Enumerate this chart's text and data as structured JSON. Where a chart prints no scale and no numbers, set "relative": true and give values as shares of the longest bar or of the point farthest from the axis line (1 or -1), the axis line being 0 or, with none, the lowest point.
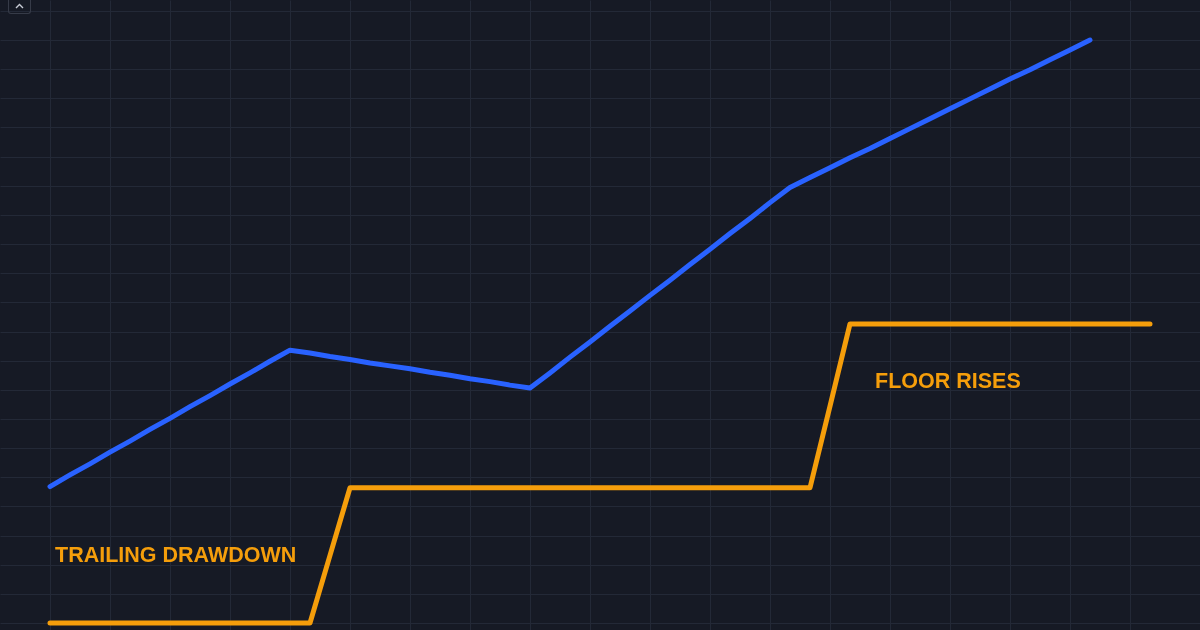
{
  "chart_data": {
    "type": "line",
    "relative": true,
    "categories": [
      null,
      null,
      null,
      null,
      null,
      null,
      null,
      null,
      null,
      null,
      null,
      null,
      null,
      null,
      null,
      null,
      null,
      null,
      null,
      null,
      null,
      null,
      null,
      null,
      null,
      null,
      null,
      null,
      null,
      null,
      null,
      null,
      null,
      null,
      null,
      null,
      null,
      null,
      null,
      null,
      null,
      null,
      null,
      null,
      null,
      null,
      null,
      null,
      null,
      null,
      null,
      null,
      null,
      null,
      null,
      null
    ],
    "series": [
      {
        "color": "#2962ff",
        "values": [
          0.234,
          0.254,
          0.273,
          0.293,
          0.312,
          0.332,
          0.351,
          0.371,
          0.39,
          0.41,
          0.429,
          0.449,
          0.468,
          0.463,
          0.457,
          0.452,
          0.446,
          0.441,
          0.436,
          0.43,
          0.425,
          0.419,
          0.414,
          0.408,
          0.403,
          0.429,
          0.456,
          0.482,
          0.509,
          0.535,
          0.562,
          0.588,
          0.615,
          0.641,
          0.668,
          0.694,
          0.721,
          0.747,
          0.764,
          0.781,
          0.798,
          0.814,
          0.831,
          0.848,
          0.865,
          0.882,
          0.899,
          0.916,
          0.933,
          0.949,
          0.966,
          0.983,
          1,
          null,
          null,
          null
        ]
      },
      {
        "color": "#f59e0b",
        "values": [
          0,
          0,
          0,
          0,
          0,
          0,
          0,
          0,
          0,
          0,
          0,
          0,
          0,
          0,
          0.116,
          0.232,
          0.232,
          0.232,
          0.232,
          0.232,
          0.232,
          0.232,
          0.232,
          0.232,
          0.232,
          0.232,
          0.232,
          0.232,
          0.232,
          0.232,
          0.232,
          0.232,
          0.232,
          0.232,
          0.232,
          0.232,
          0.232,
          0.232,
          0.232,
          0.372,
          0.513,
          0.513,
          0.513,
          0.513,
          0.513,
          0.513,
          0.513,
          0.513,
          0.513,
          0.513,
          0.513,
          0.513,
          0.513,
          0.513,
          0.513,
          0.513
        ]
      }
    ],
    "annotations": [
      "TRAILING DRAWDOWN",
      "FLOOR RISES"
    ],
    "grid": true,
    "line_style": "solid"
  }
}
